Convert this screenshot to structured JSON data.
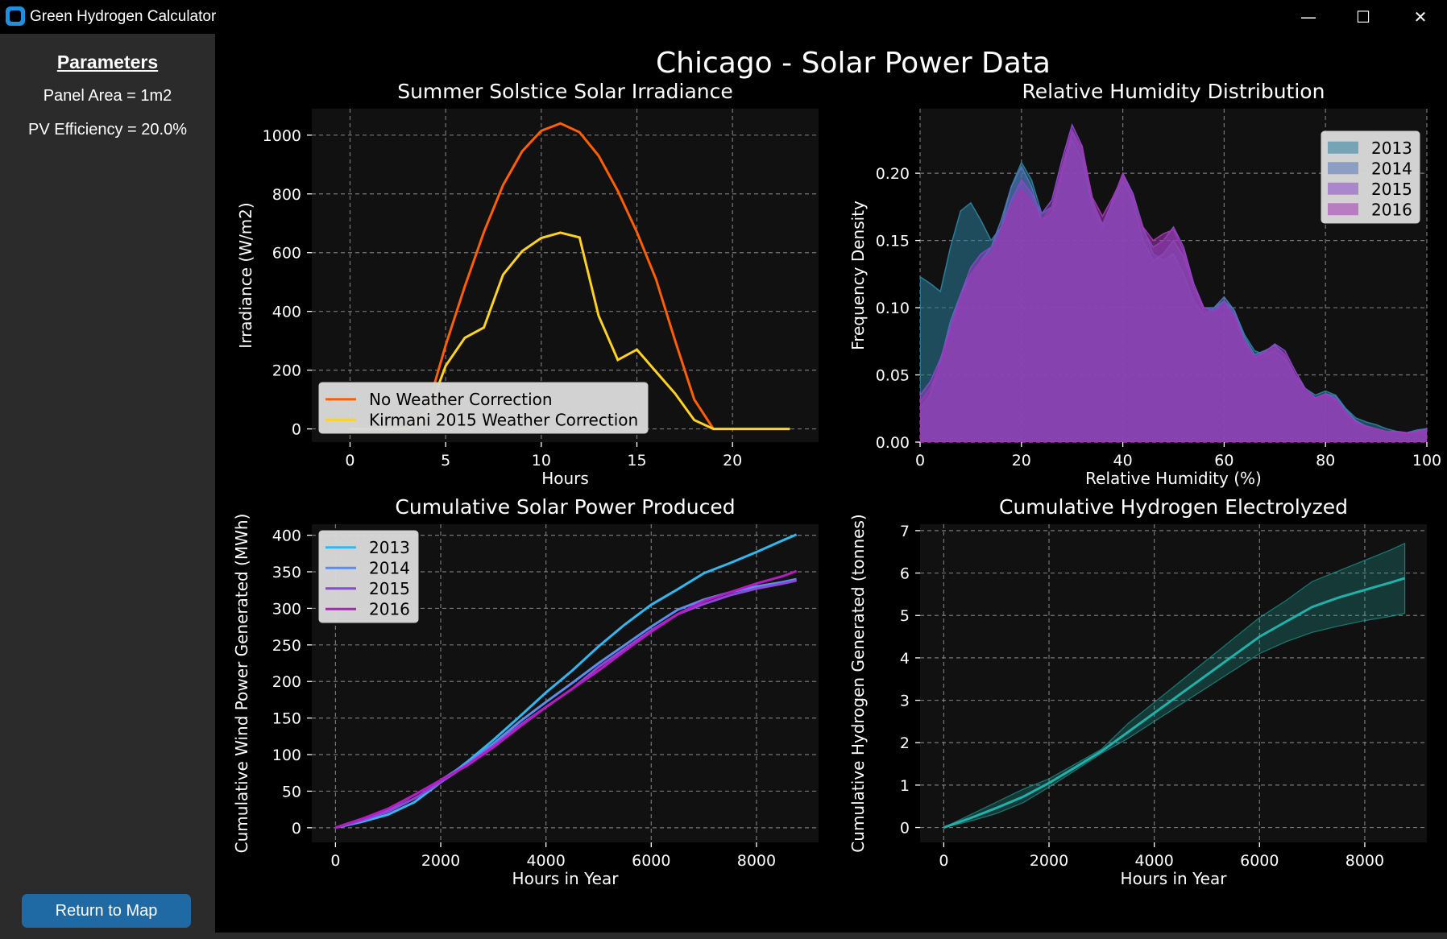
{
  "window": {
    "title": "Green Hydrogen Calculator",
    "controls": {
      "minimize": "—",
      "maximize": "☐",
      "close": "✕"
    }
  },
  "sidebar": {
    "heading": "Parameters",
    "panel_area": "Panel Area = 1m2",
    "pv_efficiency": "PV Efficiency = 20.0%",
    "return_button": "Return to Map"
  },
  "figure": {
    "title": "Chicago - Solar Power Data"
  },
  "colors": {
    "orange": "#ff5f00",
    "yellow": "#ffd21e",
    "teal": "#20b2aa",
    "s2013": "#31b8f0",
    "s2014": "#5b8def",
    "s2015": "#8b48d8",
    "s2016": "#b81bc4",
    "kde2013": "#2a7e9b",
    "kde2014": "#5571b8",
    "kde2015": "#8848c8",
    "kde2016": "#a037b0",
    "legend_bg": "#d9d9d9",
    "panel_bg": "#111111",
    "sidebar_bg": "#2b2b2b",
    "button_bg": "#1f6aa5"
  },
  "chart_data": [
    {
      "id": "irr",
      "type": "line",
      "title": "Summer Solstice Solar Irradiance",
      "xlabel": "Hours",
      "ylabel": "Irradiance (W/m2)",
      "xlim": [
        -2,
        24.5
      ],
      "ylim": [
        -45,
        1090
      ],
      "xticks": [
        0,
        5,
        10,
        15,
        20
      ],
      "yticks": [
        0,
        200,
        400,
        600,
        800,
        1000
      ],
      "grid": true,
      "legend": "lower-left",
      "series": [
        {
          "name": "No Weather Correction",
          "color": "orange",
          "x": [
            0,
            1,
            2,
            3,
            4,
            5,
            6,
            7,
            8,
            9,
            10,
            11,
            12,
            13,
            14,
            15,
            16,
            17,
            18,
            19,
            20,
            21,
            22,
            23
          ],
          "y": [
            0,
            0,
            0,
            0,
            60,
            285,
            485,
            670,
            830,
            945,
            1015,
            1040,
            1010,
            930,
            810,
            670,
            510,
            300,
            100,
            0,
            0,
            0,
            0,
            0
          ]
        },
        {
          "name": "Kirmani 2015 Weather Correction",
          "color": "yellow",
          "x": [
            0,
            1,
            2,
            3,
            4,
            5,
            6,
            7,
            8,
            9,
            10,
            11,
            12,
            13,
            14,
            15,
            16,
            17,
            18,
            19,
            20,
            21,
            22,
            23
          ],
          "y": [
            0,
            0,
            0,
            0,
            40,
            215,
            310,
            345,
            525,
            605,
            650,
            668,
            652,
            385,
            235,
            270,
            195,
            120,
            30,
            0,
            0,
            0,
            0,
            0
          ]
        }
      ]
    },
    {
      "id": "hum",
      "type": "area",
      "title": "Relative Humidity Distribution",
      "xlabel": "Relative Humidity (%)",
      "ylabel": "Frequency Density",
      "xlim": [
        0,
        100
      ],
      "ylim": [
        0,
        0.248
      ],
      "xticks": [
        0,
        20,
        40,
        60,
        80,
        100
      ],
      "yticks": [
        0.0,
        0.05,
        0.1,
        0.15,
        0.2
      ],
      "grid": true,
      "legend": "upper-right",
      "x": [
        0,
        2,
        4,
        6,
        8,
        10,
        12,
        14,
        16,
        18,
        20,
        22,
        24,
        26,
        28,
        30,
        32,
        34,
        36,
        38,
        40,
        42,
        44,
        46,
        48,
        50,
        52,
        54,
        56,
        58,
        60,
        62,
        64,
        66,
        68,
        70,
        72,
        74,
        76,
        78,
        80,
        82,
        84,
        86,
        88,
        90,
        92,
        94,
        96,
        98,
        100
      ],
      "series": [
        {
          "name": "2013",
          "color": "kde2013",
          "y": [
            0.123,
            0.118,
            0.112,
            0.145,
            0.172,
            0.178,
            0.165,
            0.15,
            0.16,
            0.19,
            0.208,
            0.195,
            0.17,
            0.175,
            0.205,
            0.225,
            0.21,
            0.175,
            0.16,
            0.18,
            0.198,
            0.185,
            0.16,
            0.14,
            0.135,
            0.14,
            0.125,
            0.105,
            0.095,
            0.1,
            0.105,
            0.098,
            0.08,
            0.068,
            0.065,
            0.068,
            0.062,
            0.05,
            0.04,
            0.035,
            0.038,
            0.035,
            0.025,
            0.018,
            0.015,
            0.013,
            0.01,
            0.008,
            0.007,
            0.009,
            0.01
          ]
        },
        {
          "name": "2014",
          "color": "kde2014",
          "y": [
            0.025,
            0.035,
            0.06,
            0.09,
            0.11,
            0.125,
            0.135,
            0.145,
            0.165,
            0.19,
            0.205,
            0.19,
            0.165,
            0.17,
            0.2,
            0.23,
            0.215,
            0.178,
            0.162,
            0.178,
            0.195,
            0.18,
            0.15,
            0.135,
            0.14,
            0.15,
            0.138,
            0.115,
            0.1,
            0.1,
            0.108,
            0.098,
            0.078,
            0.065,
            0.068,
            0.072,
            0.065,
            0.05,
            0.038,
            0.032,
            0.036,
            0.034,
            0.024,
            0.016,
            0.012,
            0.01,
            0.008,
            0.007,
            0.006,
            0.008,
            0.01
          ]
        },
        {
          "name": "2015",
          "color": "kde2015",
          "y": [
            0.035,
            0.045,
            0.062,
            0.085,
            0.11,
            0.13,
            0.14,
            0.145,
            0.16,
            0.18,
            0.195,
            0.185,
            0.17,
            0.18,
            0.21,
            0.236,
            0.22,
            0.18,
            0.162,
            0.18,
            0.2,
            0.185,
            0.158,
            0.145,
            0.15,
            0.16,
            0.145,
            0.118,
            0.1,
            0.098,
            0.105,
            0.095,
            0.075,
            0.063,
            0.067,
            0.073,
            0.068,
            0.053,
            0.04,
            0.033,
            0.036,
            0.032,
            0.022,
            0.015,
            0.012,
            0.01,
            0.008,
            0.008,
            0.007,
            0.008,
            0.01
          ]
        },
        {
          "name": "2016",
          "color": "kde2016",
          "y": [
            0.03,
            0.04,
            0.058,
            0.082,
            0.105,
            0.125,
            0.135,
            0.14,
            0.155,
            0.175,
            0.188,
            0.178,
            0.165,
            0.175,
            0.205,
            0.232,
            0.218,
            0.182,
            0.168,
            0.182,
            0.198,
            0.182,
            0.16,
            0.15,
            0.155,
            0.158,
            0.142,
            0.115,
            0.098,
            0.096,
            0.102,
            0.092,
            0.074,
            0.062,
            0.066,
            0.07,
            0.065,
            0.05,
            0.038,
            0.032,
            0.035,
            0.031,
            0.021,
            0.014,
            0.011,
            0.01,
            0.008,
            0.007,
            0.006,
            0.007,
            0.008
          ]
        }
      ]
    },
    {
      "id": "cum",
      "type": "line",
      "title": "Cumulative Solar Power Produced",
      "xlabel": "Hours in Year",
      "ylabel": "Cumulative Wind Power Generated (MWh)",
      "xlim": [
        -450,
        9180
      ],
      "ylim": [
        -20,
        415
      ],
      "xticks": [
        0,
        2000,
        4000,
        6000,
        8000
      ],
      "yticks": [
        0,
        50,
        100,
        150,
        200,
        250,
        300,
        350,
        400
      ],
      "grid": true,
      "legend": "upper-left",
      "x": [
        0,
        500,
        1000,
        1500,
        2000,
        2500,
        3000,
        3500,
        4000,
        4500,
        5000,
        5500,
        6000,
        6500,
        7000,
        7500,
        8000,
        8500,
        8760
      ],
      "series": [
        {
          "name": "2013",
          "color": "s2013",
          "y": [
            0,
            8,
            18,
            35,
            62,
            90,
            120,
            152,
            185,
            215,
            248,
            278,
            305,
            326,
            348,
            362,
            377,
            393,
            401
          ]
        },
        {
          "name": "2014",
          "color": "s2014",
          "y": [
            0,
            12,
            25,
            45,
            65,
            88,
            115,
            145,
            172,
            198,
            225,
            250,
            275,
            298,
            312,
            322,
            330,
            336,
            340
          ]
        },
        {
          "name": "2015",
          "color": "s2015",
          "y": [
            0,
            10,
            22,
            40,
            62,
            86,
            112,
            140,
            165,
            190,
            220,
            245,
            270,
            292,
            306,
            318,
            327,
            334,
            338
          ]
        },
        {
          "name": "2016",
          "color": "s2016",
          "y": [
            0,
            12,
            26,
            45,
            65,
            85,
            110,
            138,
            165,
            190,
            215,
            242,
            268,
            292,
            310,
            322,
            334,
            344,
            351
          ]
        }
      ]
    },
    {
      "id": "h2",
      "type": "line",
      "title": "Cumulative Hydrogen Electrolyzed",
      "xlabel": "Hours in Year",
      "ylabel": "Cumulative Hydrogen Generated (tonnes)",
      "xlim": [
        -450,
        9180
      ],
      "ylim": [
        -0.35,
        7.15
      ],
      "xticks": [
        0,
        2000,
        4000,
        6000,
        8000
      ],
      "yticks": [
        0,
        1,
        2,
        3,
        4,
        5,
        6,
        7
      ],
      "grid": true,
      "x": [
        0,
        500,
        1000,
        1500,
        2000,
        2500,
        3000,
        3500,
        4000,
        4500,
        5000,
        5500,
        6000,
        6500,
        7000,
        7500,
        8000,
        8500,
        8760
      ],
      "mean": [
        0,
        0.22,
        0.46,
        0.72,
        1.05,
        1.42,
        1.8,
        2.25,
        2.7,
        3.15,
        3.6,
        4.05,
        4.5,
        4.85,
        5.2,
        5.42,
        5.6,
        5.78,
        5.88
      ],
      "lower": [
        0,
        0.15,
        0.33,
        0.58,
        0.95,
        1.35,
        1.75,
        2.1,
        2.5,
        2.9,
        3.3,
        3.7,
        4.1,
        4.38,
        4.6,
        4.75,
        4.88,
        4.98,
        5.05
      ],
      "upper": [
        0,
        0.3,
        0.6,
        0.9,
        1.15,
        1.5,
        1.85,
        2.45,
        2.95,
        3.45,
        3.95,
        4.45,
        4.95,
        5.35,
        5.8,
        6.05,
        6.3,
        6.55,
        6.7
      ],
      "color": "teal"
    }
  ]
}
